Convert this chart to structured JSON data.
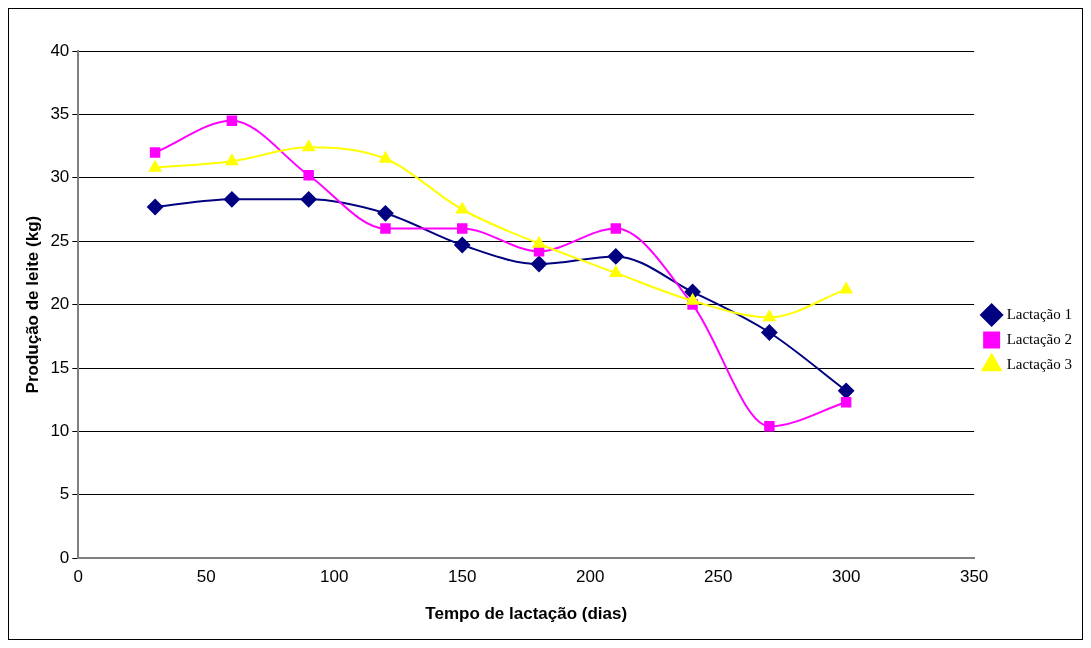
{
  "chart_data": {
    "type": "line",
    "xlabel": "Tempo de lactação (dias)",
    "ylabel": "Produção de leite (kg)",
    "x": [
      30,
      60,
      90,
      120,
      150,
      180,
      210,
      240,
      270,
      300
    ],
    "series": [
      {
        "name": "Lactação 1",
        "color": "#000080",
        "marker": "diamond",
        "values": [
          27.7,
          28.3,
          28.3,
          27.2,
          24.7,
          23.2,
          23.8,
          21.0,
          17.8,
          13.2
        ]
      },
      {
        "name": "Lactação 2",
        "color": "#ff00ff",
        "marker": "square",
        "values": [
          32.0,
          34.5,
          30.2,
          26.0,
          26.0,
          24.2,
          26.0,
          20.0,
          10.4,
          12.3
        ]
      },
      {
        "name": "Lactação 3",
        "color": "#ffff00",
        "marker": "triangle",
        "values": [
          30.8,
          31.3,
          32.4,
          31.5,
          27.5,
          24.8,
          22.5,
          20.3,
          19.0,
          21.2
        ]
      }
    ],
    "xlim": [
      0,
      350
    ],
    "xticks": [
      0,
      50,
      100,
      150,
      200,
      250,
      300,
      350
    ],
    "ylim": [
      0,
      40
    ],
    "yticks": [
      0,
      5,
      10,
      15,
      20,
      25,
      30,
      35,
      40
    ],
    "grid": "y",
    "legend": "right",
    "line_style": "solid"
  }
}
